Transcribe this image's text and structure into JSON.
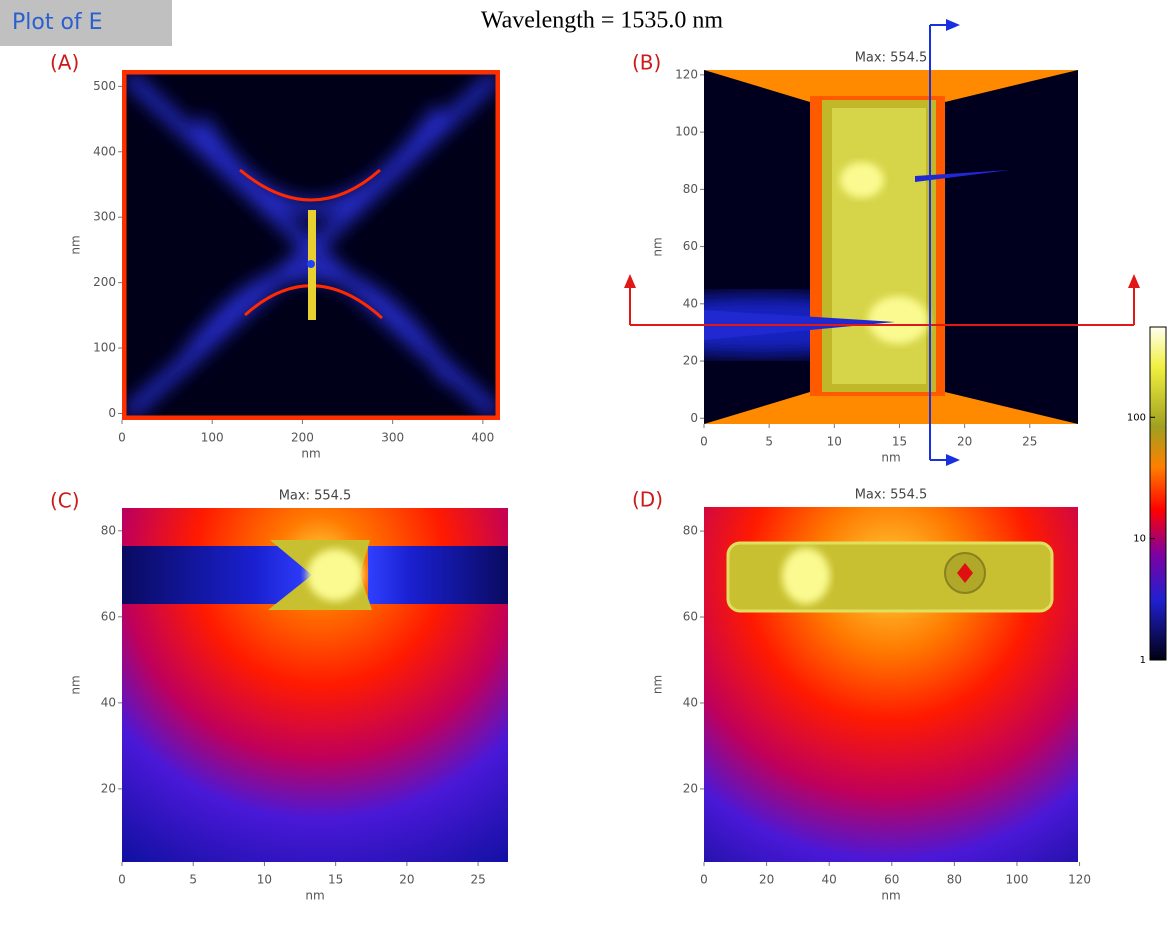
{
  "header": {
    "button": "Plot of E",
    "title": "Wavelength = 1535.0 nm"
  },
  "panels": [
    {
      "label": "(A)",
      "xlabel": "nm",
      "ylabel": "nm",
      "xlim": [
        0,
        419
      ],
      "ylim": [
        -10,
        525
      ],
      "xticks": [
        0,
        100,
        200,
        300,
        400
      ],
      "yticks": [
        0,
        100,
        200,
        300,
        400,
        500
      ]
    },
    {
      "label": "(B)",
      "title": "Max: 554.5",
      "xlabel": "nm",
      "ylabel": "nm",
      "xlim": [
        0,
        28.7
      ],
      "ylim": [
        -2,
        121.7
      ],
      "xticks": [
        0,
        5,
        10,
        15,
        20,
        25
      ],
      "yticks": [
        0,
        20,
        40,
        60,
        80,
        100,
        120
      ]
    },
    {
      "label": "(C)",
      "title": "Max: 554.5",
      "xlabel": "nm",
      "ylabel": "nm",
      "xlim": [
        0,
        27.1
      ],
      "ylim": [
        3,
        85.3
      ],
      "xticks": [
        0,
        5,
        10,
        15,
        20,
        25
      ],
      "yticks": [
        20,
        40,
        60,
        80
      ]
    },
    {
      "label": "(D)",
      "title": "Max: 554.5",
      "xlabel": "nm",
      "ylabel": "nm",
      "xlim": [
        0,
        119.5
      ],
      "ylim": [
        3,
        85.6
      ],
      "xticks": [
        0,
        20,
        40,
        60,
        80,
        100,
        120
      ],
      "yticks": [
        20,
        40,
        60,
        80
      ]
    }
  ],
  "colorbar": {
    "log": true,
    "clim": [
      1,
      554.5
    ],
    "ticks": [
      1,
      10,
      100
    ]
  }
}
